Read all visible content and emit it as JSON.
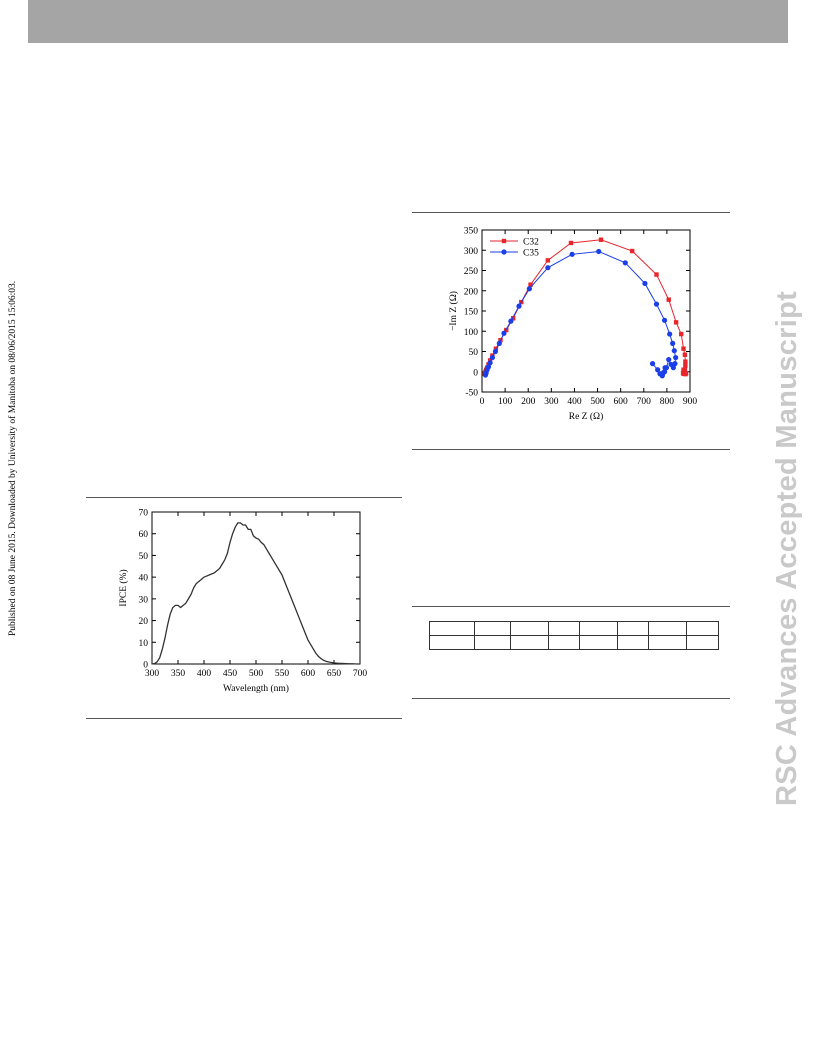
{
  "page": {
    "side_note": "Published on 08 June 2015. Downloaded by University of Manitoba on 08/06/2015 15:06:03.",
    "watermark": "RSC Advances Accepted Manuscript"
  },
  "chart_data": [
    {
      "type": "line",
      "xlabel": "Wavelength (nm)",
      "ylabel": "IPCE (%)",
      "xlim": [
        300,
        700
      ],
      "ylim": [
        0,
        70
      ],
      "xticks": [
        300,
        350,
        400,
        450,
        500,
        550,
        600,
        650,
        700
      ],
      "yticks": [
        0,
        10,
        20,
        30,
        40,
        50,
        60,
        70
      ],
      "grid": false,
      "color": "#333333",
      "series": [
        {
          "x": [
            300,
            305,
            310,
            315,
            320,
            325,
            330,
            335,
            340,
            345,
            350,
            355,
            360,
            365,
            370,
            375,
            380,
            385,
            390,
            395,
            400,
            405,
            410,
            415,
            420,
            425,
            430,
            435,
            440,
            445,
            450,
            455,
            460,
            465,
            470,
            475,
            480,
            485,
            490,
            495,
            500,
            505,
            510,
            515,
            520,
            525,
            530,
            535,
            540,
            545,
            550,
            555,
            560,
            565,
            570,
            575,
            580,
            585,
            590,
            595,
            600,
            605,
            610,
            615,
            620,
            625,
            630,
            635,
            640,
            645,
            650,
            655,
            660,
            665,
            670,
            675,
            680,
            685,
            690,
            695,
            700
          ],
          "y": [
            0,
            0.2,
            1,
            3,
            7,
            12,
            18,
            23,
            26,
            27,
            27,
            26,
            27,
            28,
            30,
            32,
            35,
            37,
            38,
            39,
            40,
            40.5,
            41,
            41.5,
            42,
            43,
            44,
            46,
            48,
            51,
            56,
            60,
            63,
            65,
            65,
            64,
            64,
            62,
            62,
            59,
            58,
            57.5,
            56,
            55,
            53,
            51,
            49,
            47,
            45,
            43,
            41,
            38,
            35,
            32,
            29,
            26,
            23,
            20,
            17,
            14,
            11,
            9,
            7,
            5,
            3.5,
            2.5,
            1.7,
            1.2,
            0.9,
            0.7,
            0.5,
            0.4,
            0.3,
            0.25,
            0.2,
            0.15,
            0.1,
            0.1,
            0.05,
            0,
            0
          ]
        }
      ]
    },
    {
      "type": "scatter",
      "xlabel": "Re Z (Ω)",
      "ylabel": "−Im Z (Ω)",
      "xlim": [
        0,
        900
      ],
      "ylim": [
        -50,
        350
      ],
      "xticks": [
        0,
        100,
        200,
        300,
        400,
        500,
        600,
        700,
        800,
        900
      ],
      "yticks": [
        -50,
        0,
        50,
        100,
        150,
        200,
        250,
        300,
        350
      ],
      "grid": false,
      "legend": "top-left",
      "series": [
        {
          "name": "C32",
          "color": "#e8262b",
          "marker": "square",
          "x": [
            12,
            15,
            18,
            22,
            28,
            35,
            45,
            60,
            80,
            105,
            135,
            170,
            210,
            285,
            385,
            515,
            650,
            755,
            808,
            840,
            862,
            872,
            878,
            880,
            880,
            878,
            875,
            872,
            870,
            872,
            876,
            880,
            883
          ],
          "y": [
            -5,
            0,
            5,
            10,
            18,
            28,
            40,
            57,
            78,
            103,
            132,
            172,
            215,
            275,
            318,
            326,
            298,
            240,
            178,
            122,
            93,
            57,
            42,
            25,
            15,
            5,
            0,
            -5,
            -3,
            5,
            0,
            -6,
            -4
          ]
        },
        {
          "name": "C35",
          "color": "#1a3ee8",
          "marker": "circle",
          "x": [
            15,
            18,
            22,
            28,
            35,
            45,
            58,
            75,
            95,
            125,
            160,
            205,
            285,
            390,
            505,
            620,
            705,
            755,
            790,
            812,
            825,
            832,
            838,
            835,
            828,
            818,
            808,
            798,
            790,
            780,
            785,
            792,
            780,
            770,
            760,
            738
          ],
          "y": [
            -8,
            -3,
            5,
            12,
            22,
            35,
            50,
            70,
            95,
            125,
            162,
            205,
            257,
            290,
            297,
            269,
            218,
            167,
            127,
            93,
            70,
            52,
            35,
            20,
            10,
            18,
            30,
            10,
            0,
            -10,
            -2,
            10,
            -8,
            -5,
            5,
            20
          ]
        }
      ]
    }
  ]
}
